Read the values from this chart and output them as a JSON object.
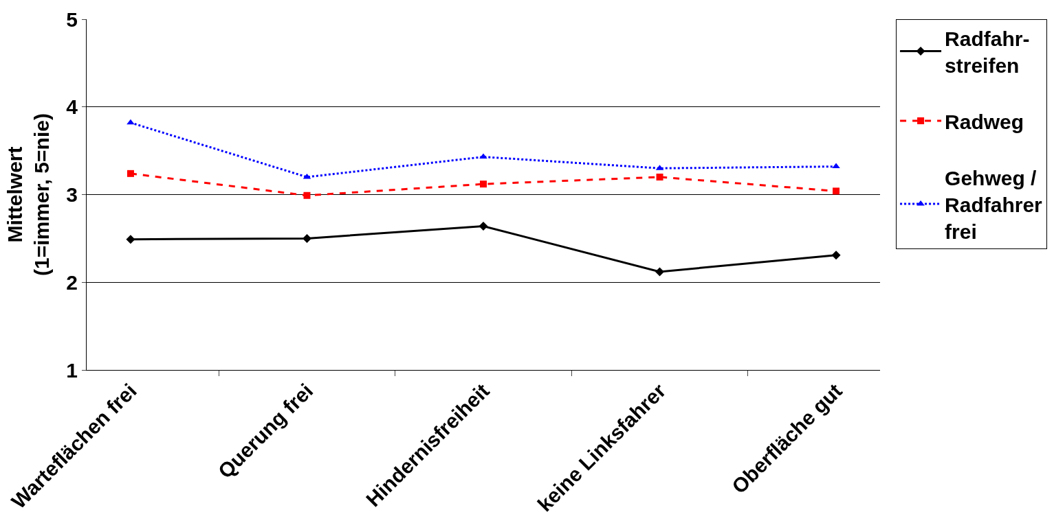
{
  "chart_data": {
    "type": "line",
    "ylabel": "Mittelwert\n(1=immer, 5=nie)",
    "categories": [
      "Warteflächen frei",
      "Querung frei",
      "Hindernisfreiheit",
      "keine Linksfahrer",
      "Oberfläche gut"
    ],
    "series": [
      {
        "name": "Radfahr-streifen",
        "color": "#000000",
        "marker": "diamond",
        "line_style": "solid",
        "values": [
          2.49,
          2.5,
          2.64,
          2.12,
          2.31
        ]
      },
      {
        "name": "Radweg",
        "color": "#ff0000",
        "marker": "square",
        "line_style": "dashed",
        "values": [
          3.24,
          2.99,
          3.12,
          3.2,
          3.04
        ]
      },
      {
        "name": "Gehweg / Radfahrer frei",
        "color": "#0000ff",
        "marker": "triangle",
        "line_style": "dotted",
        "values": [
          3.82,
          3.2,
          3.43,
          3.3,
          3.32
        ]
      }
    ],
    "ylim": [
      1,
      5
    ],
    "yticks": [
      1,
      2,
      3,
      4,
      5
    ],
    "grid": "y",
    "legend": "right"
  }
}
